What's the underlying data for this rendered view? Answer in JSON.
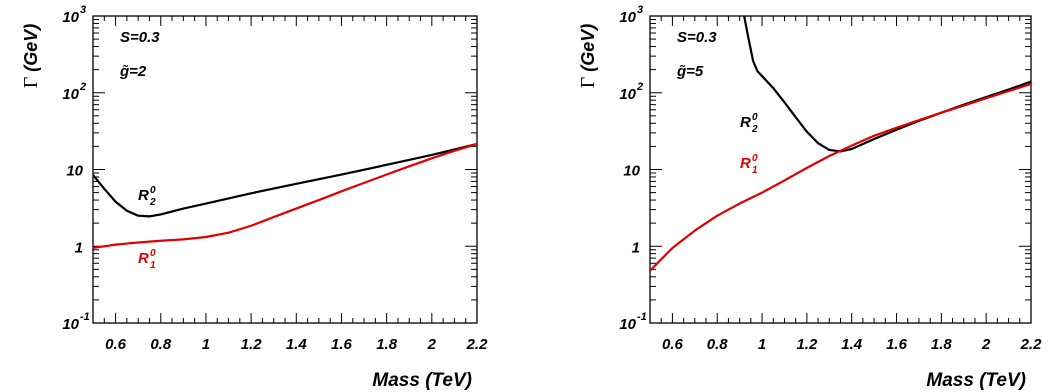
{
  "chart_data": [
    {
      "type": "line",
      "title": "",
      "xlabel": "Mass (TeV)",
      "ylabel": "Γ (GeV)",
      "ylabel_symbol": "Γ",
      "ylabel_unit": "(GeV)",
      "xlim": [
        0.5,
        2.2
      ],
      "ylim": [
        0.1,
        1000
      ],
      "yscale": "log",
      "grid": false,
      "x_tick_labels": [
        "0.6",
        "0.8",
        "1",
        "1.2",
        "1.4",
        "1.6",
        "1.8",
        "2",
        "2.2"
      ],
      "x_tick_values": [
        0.6,
        0.8,
        1.0,
        1.2,
        1.4,
        1.6,
        1.8,
        2.0,
        2.2
      ],
      "y_ticks": [
        {
          "value": 0.1,
          "base": "10",
          "exp": "-1"
        },
        {
          "value": 1,
          "base": "1",
          "exp": ""
        },
        {
          "value": 10,
          "base": "10",
          "exp": ""
        },
        {
          "value": 100,
          "base": "10",
          "exp": "2"
        },
        {
          "value": 1000,
          "base": "10",
          "exp": "3"
        }
      ],
      "annotations": [
        "S=0.3",
        "g̃=2"
      ],
      "series": [
        {
          "name": "R_2^0",
          "label_main": "R",
          "label_sub": "2",
          "label_sup": "0",
          "color": "#000000",
          "x": [
            0.5,
            0.55,
            0.6,
            0.65,
            0.7,
            0.75,
            0.8,
            0.9,
            1.0,
            1.1,
            1.2,
            1.4,
            1.6,
            1.8,
            2.0,
            2.2
          ],
          "y": [
            8.5,
            5.6,
            3.8,
            2.9,
            2.5,
            2.45,
            2.6,
            3.1,
            3.6,
            4.2,
            4.9,
            6.5,
            8.6,
            11.5,
            15.5,
            21.5
          ]
        },
        {
          "name": "R_1^0",
          "label_main": "R",
          "label_sub": "1",
          "label_sup": "0",
          "color": "#e00000",
          "x": [
            0.5,
            0.6,
            0.7,
            0.8,
            0.9,
            1.0,
            1.1,
            1.2,
            1.3,
            1.4,
            1.5,
            1.6,
            1.7,
            1.8,
            1.9,
            2.0,
            2.1,
            2.2
          ],
          "y": [
            0.95,
            1.05,
            1.12,
            1.18,
            1.23,
            1.32,
            1.5,
            1.85,
            2.4,
            3.1,
            4.0,
            5.2,
            6.7,
            8.6,
            11.0,
            14.0,
            17.5,
            21.5
          ]
        }
      ]
    },
    {
      "type": "line",
      "title": "",
      "xlabel": "Mass (TeV)",
      "ylabel": "Γ (GeV)",
      "ylabel_symbol": "Γ",
      "ylabel_unit": "(GeV)",
      "xlim": [
        0.5,
        2.2
      ],
      "ylim": [
        0.1,
        1000
      ],
      "yscale": "log",
      "grid": false,
      "x_tick_labels": [
        "0.6",
        "0.8",
        "1",
        "1.2",
        "1.4",
        "1.6",
        "1.8",
        "2",
        "2.2"
      ],
      "x_tick_values": [
        0.6,
        0.8,
        1.0,
        1.2,
        1.4,
        1.6,
        1.8,
        2.0,
        2.2
      ],
      "y_ticks": [
        {
          "value": 0.1,
          "base": "10",
          "exp": "-1"
        },
        {
          "value": 1,
          "base": "1",
          "exp": ""
        },
        {
          "value": 10,
          "base": "10",
          "exp": ""
        },
        {
          "value": 100,
          "base": "10",
          "exp": "2"
        },
        {
          "value": 1000,
          "base": "10",
          "exp": "3"
        }
      ],
      "annotations": [
        "S=0.3",
        "g̃=5"
      ],
      "series": [
        {
          "name": "R_2^0",
          "label_main": "R",
          "label_sub": "2",
          "label_sup": "0",
          "color": "#000000",
          "x": [
            0.92,
            0.94,
            0.96,
            0.98,
            1.0,
            1.05,
            1.1,
            1.15,
            1.2,
            1.25,
            1.3,
            1.35,
            1.4,
            1.5,
            1.6,
            1.7,
            1.8,
            1.9,
            2.0,
            2.1,
            2.2
          ],
          "y": [
            1000,
            500,
            260,
            190,
            165,
            115,
            75,
            48,
            31,
            22,
            18,
            17.2,
            18.5,
            25,
            33,
            43,
            55,
            70,
            88,
            110,
            140
          ]
        },
        {
          "name": "R_1^0",
          "label_main": "R",
          "label_sub": "1",
          "label_sup": "0",
          "color": "#e00000",
          "x": [
            0.5,
            0.6,
            0.7,
            0.8,
            0.9,
            1.0,
            1.1,
            1.2,
            1.3,
            1.4,
            1.5,
            1.6,
            1.7,
            1.8,
            1.9,
            2.0,
            2.1,
            2.2
          ],
          "y": [
            0.48,
            0.95,
            1.6,
            2.5,
            3.6,
            5.0,
            7.2,
            10.5,
            15.0,
            20.5,
            27.5,
            35.0,
            44.0,
            55.0,
            68.0,
            85.0,
            105.0,
            130.0
          ]
        }
      ]
    }
  ]
}
